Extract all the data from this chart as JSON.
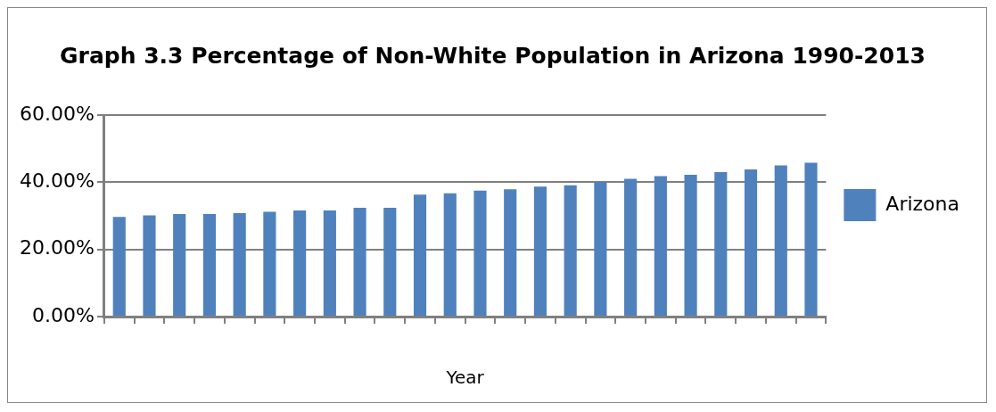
{
  "chart_data": {
    "type": "bar",
    "title": "Graph 3.3 Percentage of Non-White Population in Arizona 1990-2013",
    "xlabel": "Year",
    "categories": [
      null,
      null,
      null,
      null,
      null,
      null,
      null,
      null,
      null,
      null,
      null,
      null,
      null,
      null,
      null,
      null,
      null,
      null,
      null,
      null,
      null,
      null,
      null,
      null
    ],
    "series": [
      {
        "name": "Arizona",
        "color": "#4f81bd",
        "values": [
          29.7,
          30.1,
          30.5,
          30.5,
          30.8,
          31.2,
          31.6,
          31.6,
          32.4,
          32.4,
          36.3,
          36.7,
          37.5,
          37.9,
          38.7,
          39.1,
          40.1,
          41.0,
          41.8,
          42.2,
          43.0,
          43.8,
          45.0,
          45.8
        ]
      }
    ],
    "ylim": [
      0,
      60
    ],
    "yticks": [
      {
        "value": 0,
        "label": "0.00%"
      },
      {
        "value": 20,
        "label": "20.00%"
      },
      {
        "value": 40,
        "label": "40.00%"
      },
      {
        "value": 60,
        "label": "60.00%"
      }
    ],
    "grid": "y",
    "legend": "right"
  }
}
